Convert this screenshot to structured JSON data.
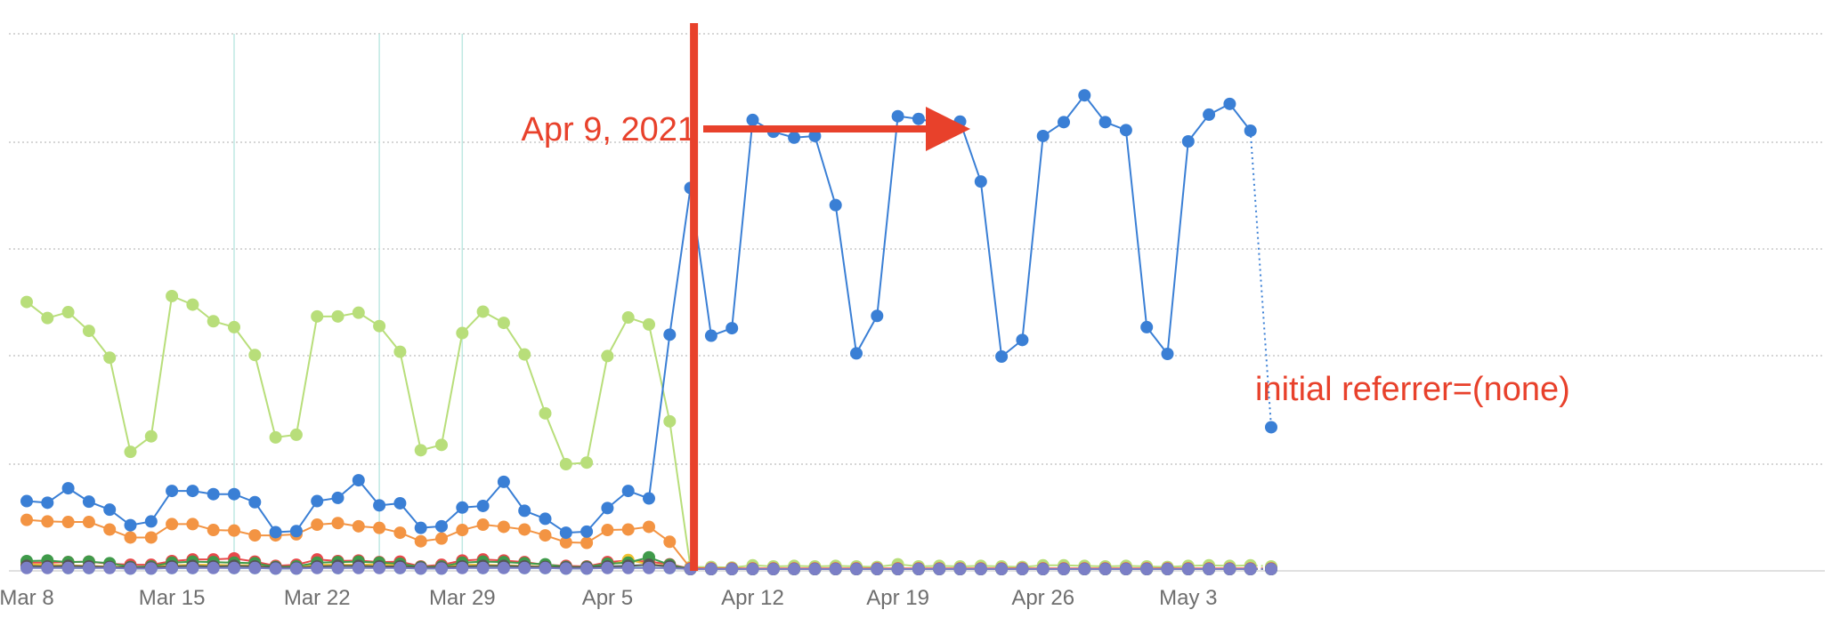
{
  "chart_data": {
    "type": "line",
    "title": "",
    "xlabel": "",
    "ylabel": "",
    "grid": true,
    "y_axis_labels_shown": false,
    "start_date": "2021-03-08",
    "x_tick_labels": [
      "Mar 8",
      "Mar 15",
      "Mar 22",
      "Mar 29",
      "Apr 5",
      "Apr 12",
      "Apr 19",
      "Apr 26",
      "May 3"
    ],
    "ylim": [
      0,
      100
    ],
    "x": [
      "Mar 8",
      "Mar 9",
      "Mar 10",
      "Mar 11",
      "Mar 12",
      "Mar 13",
      "Mar 14",
      "Mar 15",
      "Mar 16",
      "Mar 17",
      "Mar 18",
      "Mar 19",
      "Mar 20",
      "Mar 21",
      "Mar 22",
      "Mar 23",
      "Mar 24",
      "Mar 25",
      "Mar 26",
      "Mar 27",
      "Mar 28",
      "Mar 29",
      "Mar 30",
      "Mar 31",
      "Apr 1",
      "Apr 2",
      "Apr 3",
      "Apr 4",
      "Apr 5",
      "Apr 6",
      "Apr 7",
      "Apr 8",
      "Apr 9",
      "Apr 10",
      "Apr 11",
      "Apr 12",
      "Apr 13",
      "Apr 14",
      "Apr 15",
      "Apr 16",
      "Apr 17",
      "Apr 18",
      "Apr 19",
      "Apr 20",
      "Apr 21",
      "Apr 22",
      "Apr 23",
      "Apr 24",
      "Apr 25",
      "Apr 26",
      "Apr 27",
      "Apr 28",
      "Apr 29",
      "Apr 30",
      "May 1",
      "May 2",
      "May 3",
      "May 4",
      "May 5",
      "May 6",
      "May 7"
    ],
    "series": [
      {
        "color": "#b8de7a",
        "values": [
          49.9,
          46.9,
          48.0,
          44.5,
          39.5,
          21.9,
          24.8,
          51.0,
          49.4,
          46.3,
          45.2,
          40.0,
          24.6,
          25.1,
          47.2,
          47.2,
          47.9,
          45.4,
          40.6,
          22.2,
          23.2,
          44.1,
          48.1,
          46.0,
          40.1,
          29.1,
          19.6,
          19.9,
          39.8,
          47.0,
          45.7,
          27.6,
          0.4,
          0.4,
          0.3,
          0.7,
          0.5,
          0.6,
          0.5,
          0.6,
          0.5,
          0.4,
          0.9,
          0.5,
          0.6,
          0.5,
          0.6,
          0.5,
          0.4,
          0.7,
          0.7,
          0.6,
          0.5,
          0.6,
          0.5,
          0.4,
          0.6,
          0.7,
          0.6,
          0.7,
          0.5
        ]
      },
      {
        "color": "#3a7fd5",
        "values": [
          12.7,
          12.4,
          15.1,
          12.6,
          11.1,
          8.2,
          8.9,
          14.6,
          14.6,
          14.0,
          14.0,
          12.5,
          6.9,
          7.1,
          12.7,
          13.3,
          16.6,
          11.9,
          12.3,
          7.7,
          8.0,
          11.5,
          11.8,
          16.3,
          10.9,
          9.4,
          6.8,
          7.0,
          11.4,
          14.6,
          13.2,
          43.8,
          71.2,
          43.6,
          45.0,
          83.9,
          81.7,
          80.6,
          80.9,
          68.0,
          40.3,
          47.3,
          84.6,
          84.1,
          83.3,
          83.6,
          72.4,
          39.7,
          42.8,
          80.9,
          83.5,
          88.5,
          83.5,
          82.0,
          45.2,
          40.2,
          79.9,
          84.9,
          86.9,
          81.9,
          26.5
        ]
      },
      {
        "color": "#f39443",
        "values": [
          9.2,
          8.9,
          8.8,
          8.8,
          7.4,
          5.9,
          5.9,
          8.4,
          8.4,
          7.3,
          7.2,
          6.3,
          6.3,
          6.5,
          8.3,
          8.6,
          8.0,
          7.7,
          6.8,
          5.2,
          5.7,
          7.3,
          8.3,
          7.9,
          7.4,
          6.3,
          5.0,
          4.9,
          7.3,
          7.4,
          7.9,
          5.1,
          0.2,
          0.1,
          0.1,
          0.1,
          0.1,
          0.1,
          0.1,
          0.1,
          0.1,
          0.1,
          0.1,
          0.1,
          0.1,
          0.1,
          0.1,
          0.1,
          0.1,
          0.1,
          0.1,
          0.1,
          0.1,
          0.1,
          0.1,
          0.1,
          0.1,
          0.1,
          0.1,
          0.1,
          0.1
        ]
      },
      {
        "color": "#e8484a",
        "values": [
          1.2,
          1.2,
          1.3,
          1.4,
          1.0,
          0.8,
          0.8,
          1.5,
          1.8,
          1.8,
          2.0,
          1.4,
          0.6,
          0.8,
          1.8,
          1.5,
          1.6,
          1.3,
          1.4,
          0.5,
          0.8,
          1.6,
          1.8,
          1.6,
          1.3,
          0.8,
          0.6,
          0.5,
          1.3,
          1.6,
          1.4,
          0.9,
          0.1,
          0.1,
          0.1,
          0.1,
          0.1,
          0.1,
          0.1,
          0.1,
          0.1,
          0.1,
          0.1,
          0.1,
          0.1,
          0.1,
          0.1,
          0.1,
          0.1,
          0.1,
          0.1,
          0.1,
          0.1,
          0.1,
          0.1,
          0.1,
          0.1,
          0.1,
          0.1,
          0.1,
          0.1
        ]
      },
      {
        "color": "#f2c230",
        "values": [
          0.9,
          0.8,
          0.7,
          0.6,
          0.5,
          0.3,
          0.4,
          0.7,
          0.8,
          0.8,
          0.7,
          0.7,
          0.4,
          0.4,
          0.8,
          0.8,
          0.8,
          0.9,
          0.7,
          0.4,
          0.4,
          0.8,
          0.8,
          0.7,
          0.6,
          0.5,
          0.3,
          0.3,
          0.7,
          1.7,
          0.9,
          0.6,
          0.0,
          0.0,
          0.0,
          0.0,
          0.0,
          0.0,
          0.0,
          0.0,
          0.0,
          0.0,
          0.0,
          0.0,
          0.0,
          0.0,
          0.0,
          0.0,
          0.0,
          0.0,
          0.0,
          0.0,
          0.0,
          0.0,
          0.0,
          0.0,
          0.0,
          0.0,
          0.0,
          0.0,
          0.0
        ]
      },
      {
        "color": "#3f9a4a",
        "values": [
          1.5,
          1.6,
          1.3,
          1.4,
          1.1,
          0.4,
          0.5,
          1.2,
          1.4,
          1.3,
          1.2,
          1.1,
          0.4,
          0.5,
          1.2,
          1.3,
          1.4,
          1.2,
          1.0,
          0.4,
          0.5,
          1.2,
          1.4,
          1.3,
          1.1,
          0.9,
          0.4,
          0.4,
          1.0,
          1.2,
          2.2,
          0.8,
          0.0,
          0.0,
          0.0,
          0.0,
          0.0,
          0.0,
          0.0,
          0.0,
          0.0,
          0.0,
          0.0,
          0.0,
          0.0,
          0.0,
          0.0,
          0.0,
          0.0,
          0.0,
          0.0,
          0.0,
          0.0,
          0.0,
          0.0,
          0.0,
          0.0,
          0.0,
          0.0,
          0.0,
          0.0
        ]
      },
      {
        "color": "#4fc1b9",
        "values": [
          0.3,
          0.3,
          0.2,
          0.2,
          0.3,
          0.1,
          0.1,
          0.2,
          0.2,
          0.3,
          0.2,
          0.2,
          0.1,
          0.1,
          0.3,
          0.2,
          0.3,
          0.3,
          0.2,
          0.1,
          0.1,
          0.3,
          0.2,
          0.3,
          0.2,
          0.2,
          0.1,
          0.1,
          0.3,
          0.3,
          0.3,
          0.2,
          0.0,
          0.0,
          0.0,
          0.0,
          0.0,
          0.0,
          0.0,
          0.0,
          0.0,
          0.0,
          0.0,
          0.0,
          0.0,
          0.0,
          0.0,
          0.0,
          0.0,
          0.0,
          0.0,
          0.0,
          0.0,
          0.0,
          0.0,
          0.0,
          0.0,
          0.0,
          0.0,
          0.0,
          0.0
        ]
      },
      {
        "color": "#555555",
        "values": [
          0.6,
          0.5,
          0.6,
          0.5,
          0.4,
          0.3,
          0.3,
          0.5,
          0.6,
          0.5,
          0.6,
          0.5,
          0.3,
          0.2,
          0.5,
          0.6,
          0.6,
          0.5,
          0.5,
          0.3,
          0.3,
          0.5,
          0.6,
          0.6,
          0.5,
          0.4,
          0.3,
          0.3,
          0.5,
          0.6,
          0.8,
          0.5,
          0.0,
          0.0,
          0.0,
          0.0,
          0.0,
          0.0,
          0.0,
          0.0,
          0.0,
          0.0,
          0.0,
          0.0,
          0.0,
          0.0,
          0.0,
          0.0,
          0.0,
          0.0,
          0.0,
          0.0,
          0.0,
          0.0,
          0.0,
          0.0,
          0.0,
          0.0,
          0.0,
          0.0,
          0.0
        ]
      },
      {
        "color": "#7b7fc6",
        "values": [
          0.2,
          0.2,
          0.2,
          0.2,
          0.2,
          0.1,
          0.1,
          0.2,
          0.2,
          0.2,
          0.2,
          0.2,
          0.1,
          0.1,
          0.2,
          0.2,
          0.2,
          0.2,
          0.2,
          0.1,
          0.1,
          0.2,
          0.2,
          0.2,
          0.2,
          0.2,
          0.1,
          0.1,
          0.2,
          0.2,
          0.2,
          0.2,
          0.0,
          0.0,
          0.0,
          0.0,
          0.0,
          0.0,
          0.0,
          0.0,
          0.0,
          0.0,
          0.0,
          0.0,
          0.0,
          0.0,
          0.0,
          0.0,
          0.0,
          0.0,
          0.0,
          0.0,
          0.0,
          0.0,
          0.0,
          0.0,
          0.0,
          0.0,
          0.0,
          0.0,
          0.0
        ]
      }
    ],
    "annotations": {
      "date_label": "Apr 9, 2021",
      "series_label": "initial referrer=(none)",
      "marker_date": "Apr 9",
      "highlighted_dates": [
        "Mar 18",
        "Mar 25",
        "Mar 29"
      ]
    },
    "colors": {
      "annotation": "#e8412b",
      "grid": "#c8c8c8",
      "highlight_lines": "#bfe9e3",
      "tick_text": "#6e6e6e"
    }
  }
}
